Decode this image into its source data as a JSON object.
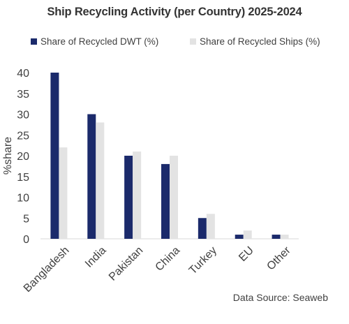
{
  "chart_data": {
    "type": "bar",
    "title": "Ship Recycling Activity (per Country) 2025-2024",
    "ylabel": "%share",
    "xlabel": "",
    "categories": [
      "Bangladesh",
      "India",
      "Pakistan",
      "China",
      "Turkey",
      "EU",
      "Other"
    ],
    "series": [
      {
        "name": "Share of Recycled DWT (%)",
        "color": "#1b2a6b",
        "values": [
          40,
          30,
          20,
          18,
          5,
          1,
          1
        ]
      },
      {
        "name": "Share of Recycled Ships (%)",
        "color": "#e3e3e3",
        "values": [
          22,
          28,
          21,
          20,
          6,
          2,
          1
        ]
      }
    ],
    "ylim": [
      0,
      40
    ],
    "yticks": [
      0,
      5,
      10,
      15,
      20,
      25,
      30,
      35,
      40
    ],
    "grid": false,
    "legend_position": "top",
    "source": "Data Source: Seaweb"
  }
}
